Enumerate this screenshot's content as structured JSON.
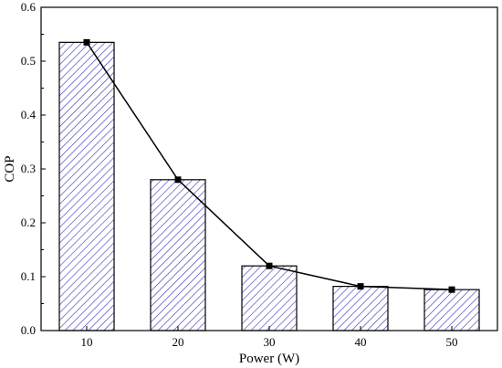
{
  "chart_data": {
    "type": "bar",
    "categories": [
      "10",
      "20",
      "30",
      "40",
      "50"
    ],
    "values": [
      0.535,
      0.28,
      0.12,
      0.082,
      0.076
    ],
    "line_overlay": true,
    "xlabel": "Power (W)",
    "ylabel": "COP",
    "ylim": [
      0,
      0.6
    ],
    "yticks": [
      "0.0",
      "0.1",
      "0.2",
      "0.3",
      "0.4",
      "0.5",
      "0.6"
    ],
    "grid": false,
    "legend": "none",
    "bar_pattern": "diagonal-hatch",
    "colors": {
      "hatch": "#3333bb",
      "line": "#000000",
      "axis": "#000000",
      "bar_fill": "#ffffff"
    }
  }
}
